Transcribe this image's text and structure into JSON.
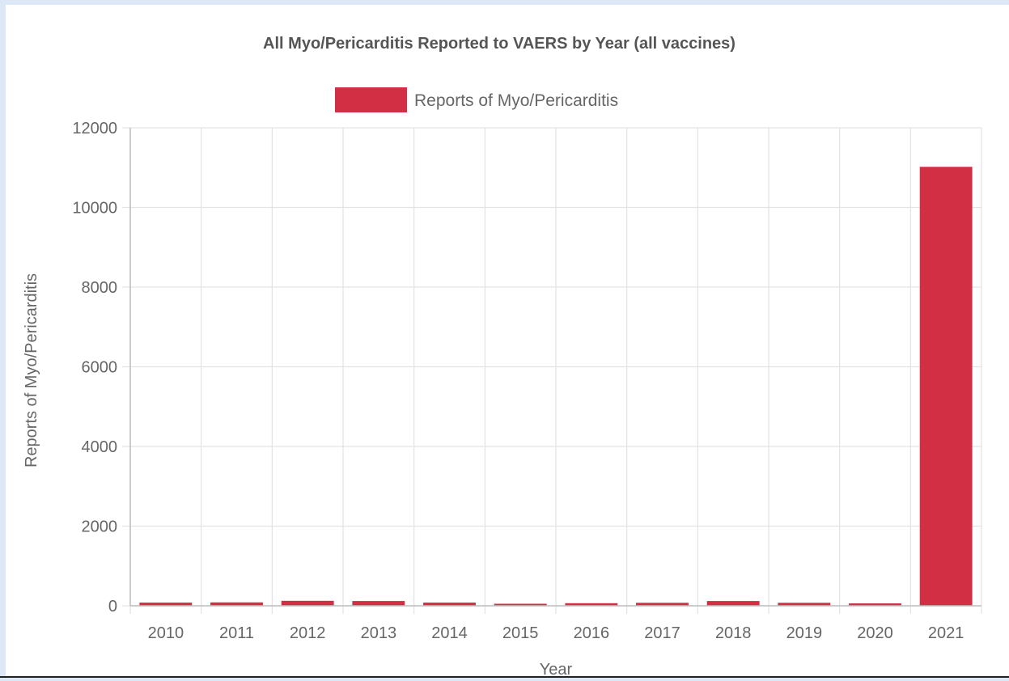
{
  "chart_data": {
    "type": "bar",
    "title": "All Myo/Pericarditis Reported to VAERS by Year (all vaccines)",
    "xlabel": "Year",
    "ylabel": "Reports of Myo/Pericarditis",
    "legend": {
      "position": "top",
      "entries": [
        "Reports of Myo/Pericarditis"
      ]
    },
    "categories": [
      "2010",
      "2011",
      "2012",
      "2013",
      "2014",
      "2015",
      "2016",
      "2017",
      "2018",
      "2019",
      "2020",
      "2021"
    ],
    "series": [
      {
        "name": "Reports of Myo/Pericarditis",
        "color": "#d22f45",
        "values": [
          80,
          85,
          125,
          120,
          80,
          45,
          65,
          75,
          120,
          75,
          60,
          11020
        ]
      }
    ],
    "yticks": [
      "0",
      "2000",
      "4000",
      "6000",
      "8000",
      "10000",
      "12000"
    ],
    "ylim": [
      0,
      12000
    ],
    "grid": true
  }
}
